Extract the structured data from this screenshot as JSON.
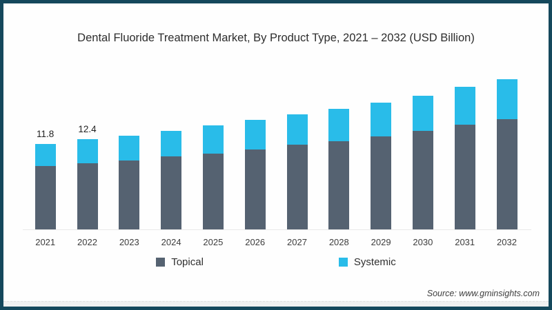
{
  "page": {
    "title": "Dental Fluoride Treatment Market, By Product Type, 2021 – 2032 (USD Billion)",
    "source": "Source: www.gminsights.com"
  },
  "colors": {
    "frame": "#15485c",
    "topical": "#556271",
    "systemic": "#29bce9",
    "axis_line": "#e9e9e9"
  },
  "legend": {
    "items": [
      {
        "label": "Topical",
        "color": "#556271"
      },
      {
        "label": "Systemic",
        "color": "#29bce9"
      }
    ]
  },
  "chart_data": {
    "type": "bar",
    "stacked": true,
    "title": "Dental Fluoride Treatment Market, By Product Type, 2021 – 2032 (USD Billion)",
    "xlabel": "",
    "ylabel": "USD Billion",
    "ylim": [
      0,
      22
    ],
    "grid": false,
    "legend_position": "bottom",
    "categories": [
      "2021",
      "2022",
      "2023",
      "2024",
      "2025",
      "2026",
      "2027",
      "2028",
      "2029",
      "2030",
      "2031",
      "2032"
    ],
    "series": [
      {
        "name": "Topical",
        "color": "#556271",
        "values": [
          8.7,
          9.1,
          9.5,
          10.0,
          10.4,
          11.0,
          11.7,
          12.1,
          12.8,
          13.6,
          14.4,
          15.2
        ]
      },
      {
        "name": "Systemic",
        "color": "#29bce9",
        "values": [
          3.1,
          3.3,
          3.4,
          3.6,
          3.9,
          4.1,
          4.1,
          4.5,
          4.6,
          4.8,
          5.2,
          5.5
        ]
      }
    ],
    "totals": [
      11.8,
      12.4,
      12.9,
      13.6,
      14.3,
      15.1,
      15.8,
      16.6,
      17.4,
      18.4,
      19.6,
      20.7
    ],
    "bar_labels": [
      "11.8",
      "12.4",
      "",
      "",
      "",
      "",
      "",
      "",
      "",
      "",
      "",
      ""
    ]
  }
}
